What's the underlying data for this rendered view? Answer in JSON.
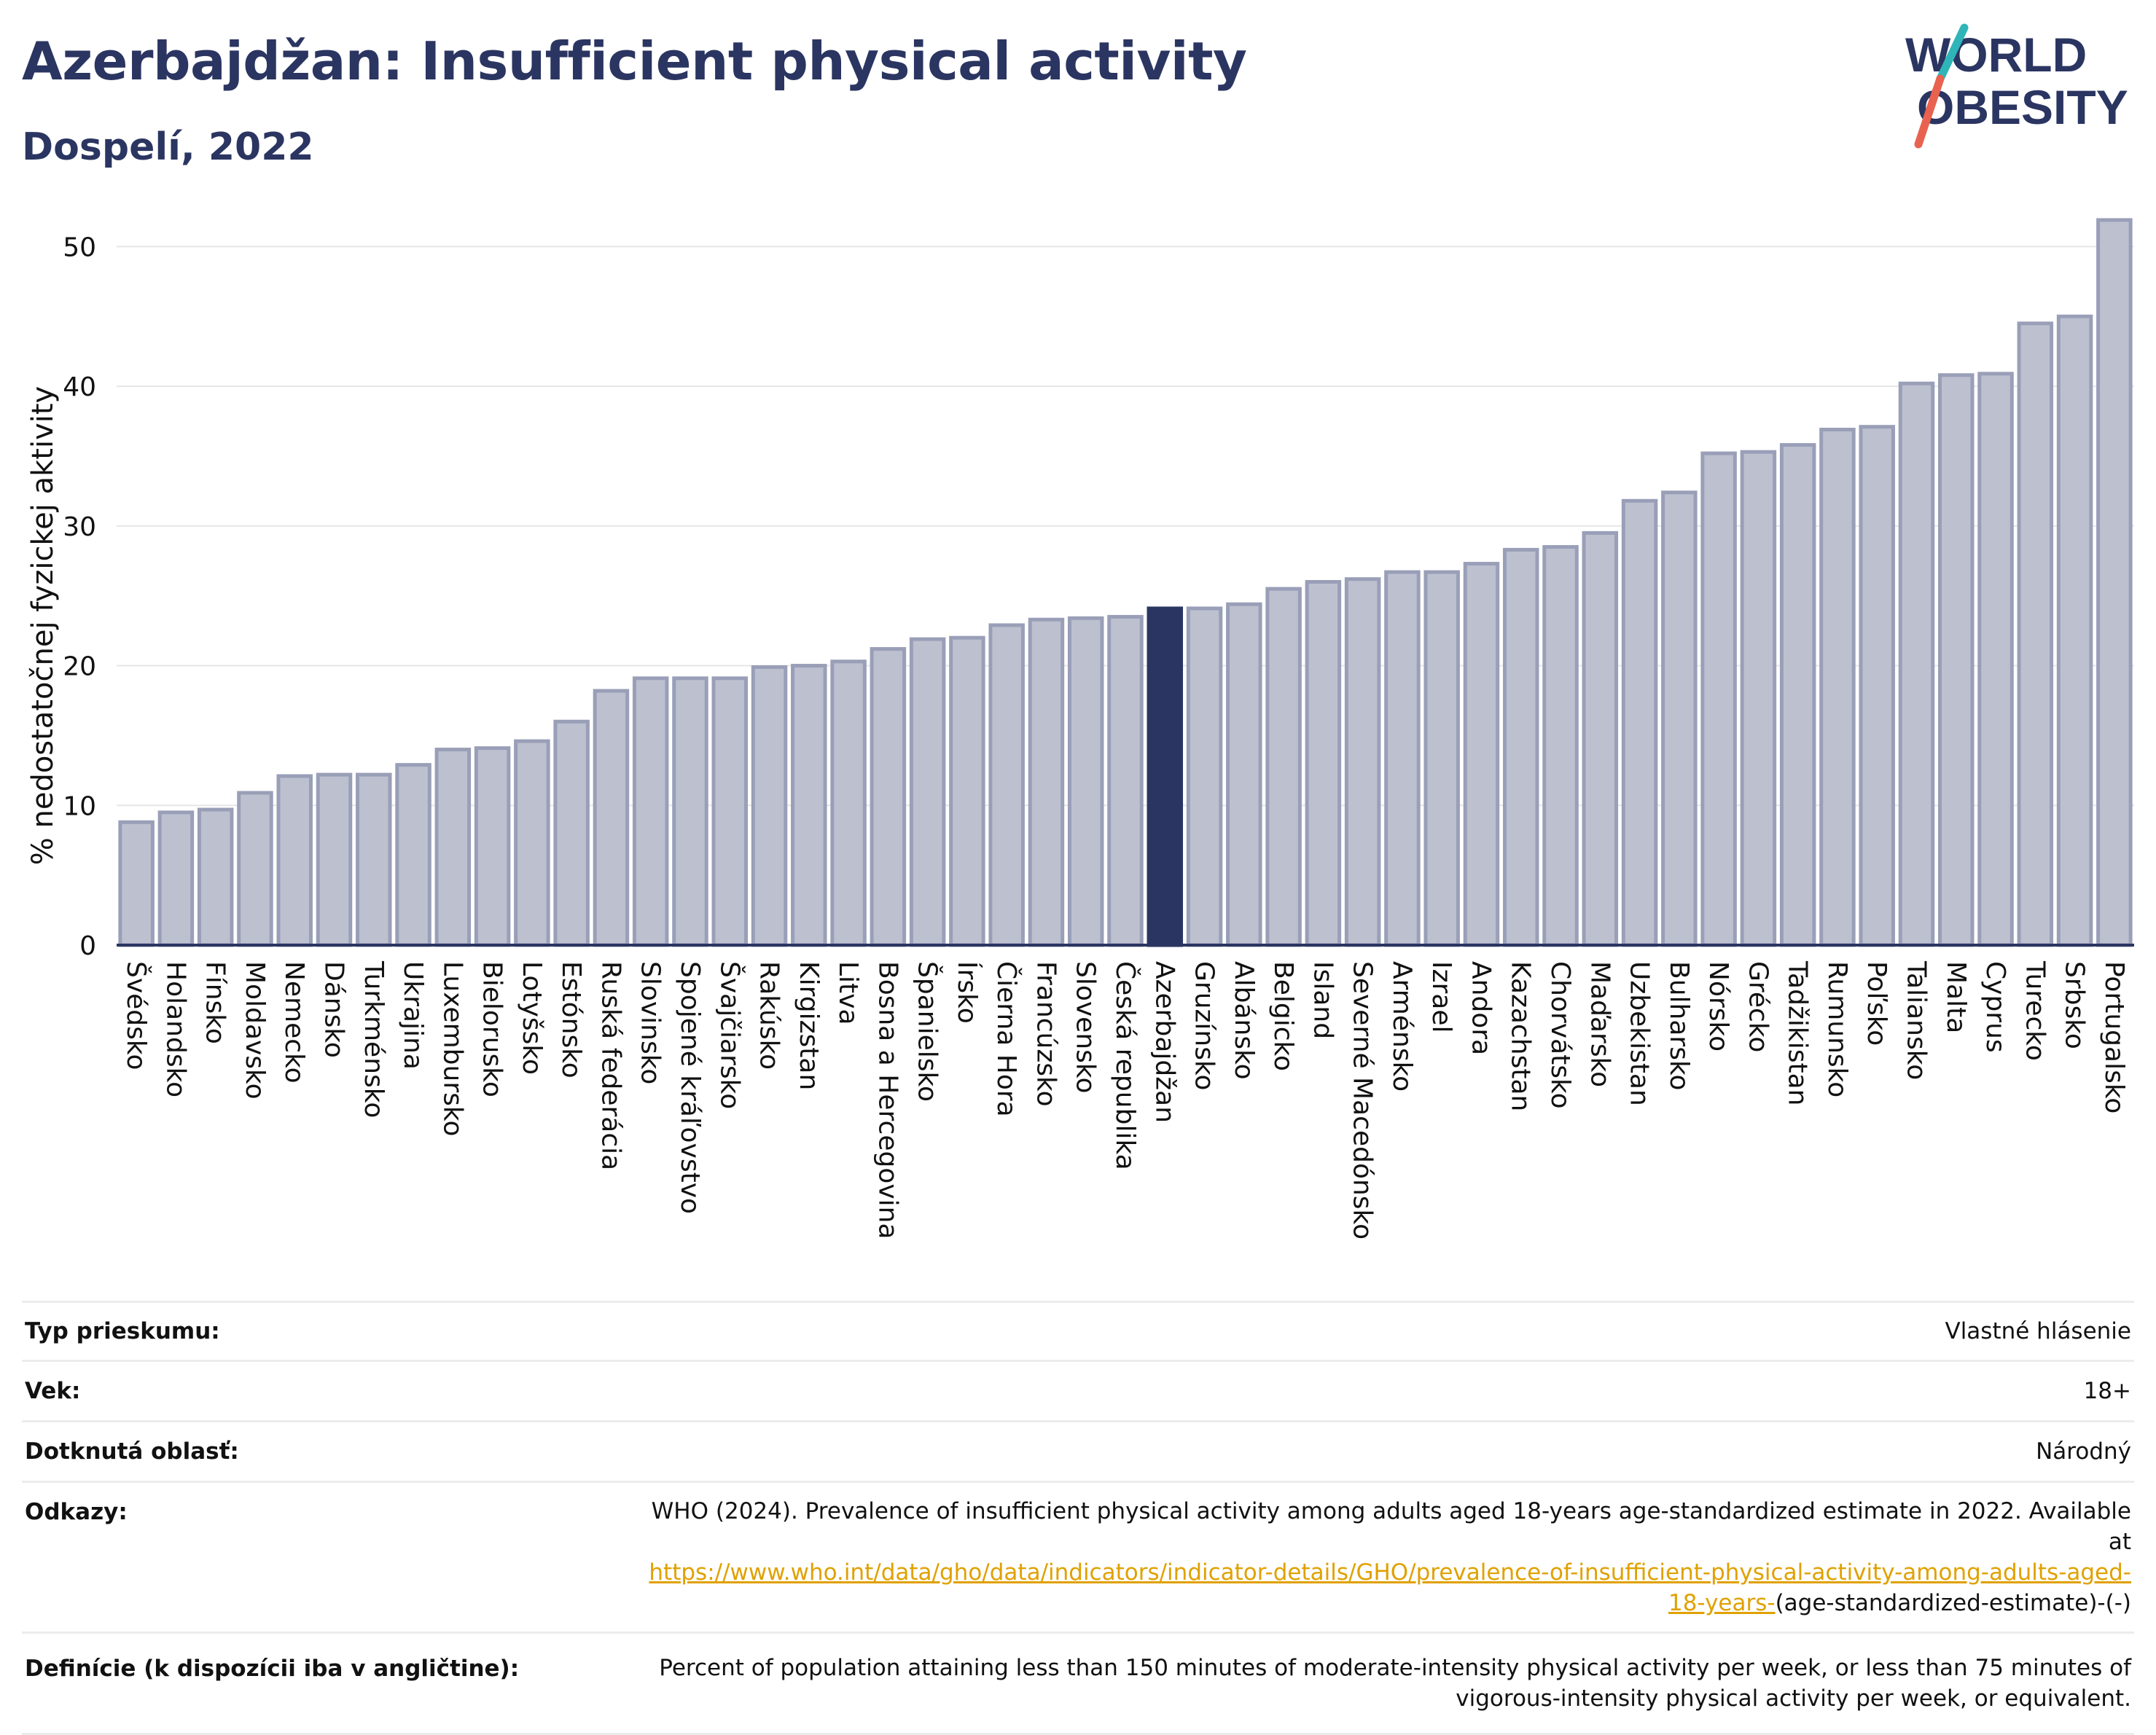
{
  "title": "Azerbajdžan: Insufficient physical activity",
  "subtitle": "Dospelí, 2022",
  "logo": {
    "line1": "WORLD",
    "line2": "OBESITY",
    "colors": {
      "text": "#2b3561",
      "slash_top": "#2fb5b8",
      "slash_bottom": "#e8624f"
    }
  },
  "colors": {
    "bar": "#bdc0cf",
    "bar_edge": "#9a9fb8",
    "highlight": "#2b3561",
    "grid": "#e6e6e6",
    "axis": "#2b3561",
    "link": "#e0a100"
  },
  "chart_data": {
    "type": "bar",
    "ylabel": "% nedostatočnej fyzickej aktivity",
    "ylim": [
      0,
      52
    ],
    "yticks": [
      0,
      10,
      20,
      30,
      40,
      50
    ],
    "grid": true,
    "highlight": "Azerbajdžan",
    "categories": [
      "Švédsko",
      "Holandsko",
      "Fínsko",
      "Moldavsko",
      "Nemecko",
      "Dánsko",
      "Turkménsko",
      "Ukrajina",
      "Luxembursko",
      "Bielorusko",
      "Lotyšsko",
      "Estónsko",
      "Ruská federácia",
      "Slovinsko",
      "Spojené kráľovstvo",
      "Švajčiarsko",
      "Rakúsko",
      "Kirgizstan",
      "Litva",
      "Bosna a Hercegovina",
      "Španielsko",
      "Írsko",
      "Čierna Hora",
      "Francúzsko",
      "Slovensko",
      "Česká republika",
      "Azerbajdžan",
      "Gruzínsko",
      "Albánsko",
      "Belgicko",
      "Island",
      "Severné Macedónsko",
      "Arménsko",
      "Izrael",
      "Andora",
      "Kazachstan",
      "Chorvátsko",
      "Maďarsko",
      "Uzbekistan",
      "Bulharsko",
      "Nórsko",
      "Grécko",
      "Tadžikistan",
      "Rumunsko",
      "Poľsko",
      "Taliansko",
      "Malta",
      "Cyprus",
      "Turecko",
      "Srbsko",
      "Portugalsko"
    ],
    "values": [
      8.8,
      9.5,
      9.7,
      10.9,
      12.1,
      12.2,
      12.2,
      12.9,
      14.0,
      14.1,
      14.6,
      16.0,
      18.2,
      19.1,
      19.1,
      19.1,
      19.9,
      20.0,
      20.3,
      21.2,
      21.9,
      22.0,
      22.9,
      23.3,
      23.4,
      23.5,
      24.1,
      24.1,
      24.4,
      25.5,
      26.0,
      26.2,
      26.7,
      26.7,
      27.3,
      28.3,
      28.5,
      29.5,
      31.8,
      32.4,
      35.2,
      35.3,
      35.8,
      36.9,
      37.1,
      40.2,
      40.8,
      40.9,
      44.5,
      45.0,
      51.9
    ]
  },
  "info": {
    "rows": [
      {
        "key": "Typ prieskumu:",
        "value": "Vlastné hlásenie"
      },
      {
        "key": "Vek:",
        "value": "18+"
      },
      {
        "key": "Dotknutá oblasť:",
        "value": "Národný"
      }
    ],
    "refs_key": "Odkazy:",
    "refs_text": "WHO (2024). Prevalence of insufficient physical activity among adults aged 18-years age-standardized estimate in 2022. Available at",
    "refs_link_1": "https://www.who.int/data/gho/data/indicators/indicator-details/GHO/prevalence-of-insufficient-physical-activity-among-adults-aged-",
    "refs_link_2": "18-years-",
    "refs_tail": "(age-standardized-estimate)-(-)",
    "def_key": "Definície (k dispozícii iba v angličtine):",
    "def_text_1": "Percent of population attaining less than 150 minutes of moderate-intensity physical activity per week, or less than 75 minutes of",
    "def_text_2": "vigorous-intensity physical activity per week, or equivalent."
  }
}
